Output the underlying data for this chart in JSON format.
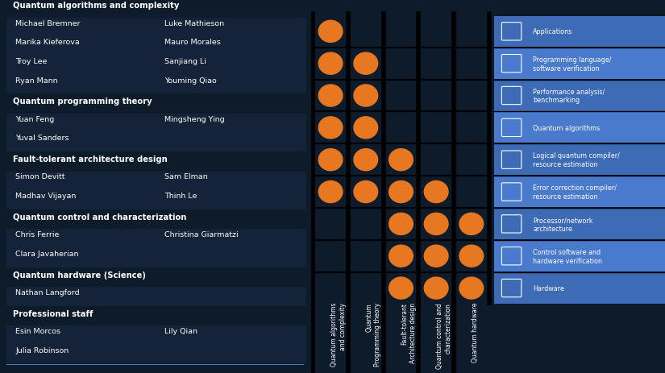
{
  "bg_color": "#0d1b2a",
  "panel_bg": "#4472c4",
  "cell_bg": "#152338",
  "dot_color": "#e87722",
  "left_groups": [
    {
      "header": "Quantum algorithms and complexity",
      "members": [
        [
          "Michael Bremner",
          "Luke Mathieson"
        ],
        [
          "Marika Kieferova",
          "Mauro Morales"
        ],
        [
          "Troy Lee",
          "Sanjiang Li"
        ],
        [
          "Ryan Mann",
          "Youming Qiao"
        ]
      ]
    },
    {
      "header": "Quantum programming theory",
      "members": [
        [
          "Yuan Feng",
          "Mingsheng Ying"
        ],
        [
          "Yuval Sanders",
          ""
        ]
      ]
    },
    {
      "header": "Fault-tolerant architecture design",
      "members": [
        [
          "Simon Devitt",
          "Sam Elman"
        ],
        [
          "Madhav Vijayan",
          "Thinh Le"
        ]
      ]
    },
    {
      "header": "Quantum control and characterization",
      "members": [
        [
          "Chris Ferrie",
          "Christina Giarmatzi"
        ],
        [
          "Clara Javaherian",
          ""
        ]
      ]
    },
    {
      "header": "Quantum hardware (Science)",
      "members": [
        [
          "Nathan Langford",
          ""
        ]
      ]
    },
    {
      "header": "Professional staff",
      "members": [
        [
          "Esin Morcos",
          "Lily Qian"
        ],
        [
          "Julia Robinson",
          ""
        ]
      ]
    }
  ],
  "col_labels": [
    "Quantum algorithms\nand complexity",
    "Quantum\nProgramming theory",
    "Fault-tolerant\nArchitecture design",
    "Quantum control and\ncharacterization",
    "Quantum hardware"
  ],
  "row_labels": [
    "Applications",
    "Programming language/\nsoftware verification",
    "Performance analysis/\nbenchmarking",
    "Quantum algorithms",
    "Logical quantum compiler/\nresource estimation",
    "Error correction compiler/\nresource estimation",
    "Processor/network\narchitecture",
    "Control software and\nhardware verification",
    "Hardware"
  ],
  "dot_matrix": [
    [
      1,
      0,
      0,
      0,
      0
    ],
    [
      1,
      1,
      0,
      0,
      0
    ],
    [
      1,
      1,
      0,
      0,
      0
    ],
    [
      1,
      1,
      0,
      0,
      0
    ],
    [
      1,
      1,
      1,
      0,
      0
    ],
    [
      1,
      1,
      1,
      1,
      0
    ],
    [
      0,
      0,
      1,
      1,
      1
    ],
    [
      0,
      0,
      1,
      1,
      1
    ],
    [
      0,
      0,
      1,
      1,
      1
    ]
  ]
}
